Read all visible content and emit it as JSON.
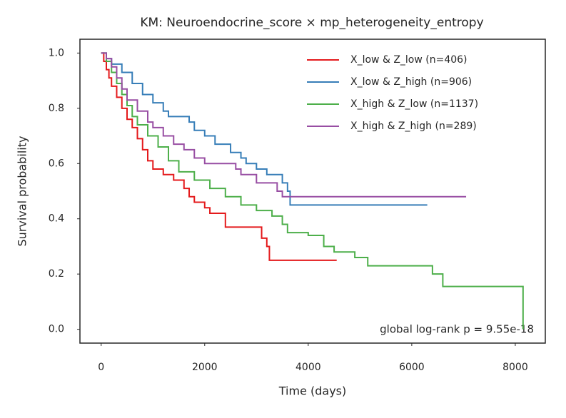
{
  "chart_data": {
    "type": "step",
    "title": "KM: Neuroendocrine_score × mp_heterogeneity_entropy",
    "x_label": "Time (days)",
    "y_label": "Survival probability",
    "annotation": "global log-rank p = 9.55e-18",
    "xlim": [
      -410,
      8580
    ],
    "ylim": [
      -0.05,
      1.05
    ],
    "xticks": [
      0,
      2000,
      4000,
      6000,
      8000
    ],
    "yticks": [
      {
        "value": 0,
        "label": "0.0"
      },
      {
        "value": 0.2,
        "label": "0.2"
      },
      {
        "value": 0.4,
        "label": "0.4"
      },
      {
        "value": 0.6,
        "label": "0.6"
      },
      {
        "value": 0.8,
        "label": "0.8"
      },
      {
        "value": 1,
        "label": "1.0"
      }
    ],
    "legend": "upper right",
    "series": [
      {
        "name": "X_low & Z_low (n=406)",
        "color": "#e41a1c",
        "x": [
          0,
          50,
          100,
          150,
          200,
          300,
          400,
          500,
          600,
          700,
          800,
          900,
          1000,
          1200,
          1400,
          1600,
          1700,
          1800,
          2000,
          2100,
          2400,
          3100,
          3200,
          3250,
          4550
        ],
        "values": [
          1.0,
          0.97,
          0.94,
          0.91,
          0.88,
          0.84,
          0.8,
          0.76,
          0.73,
          0.69,
          0.65,
          0.61,
          0.58,
          0.56,
          0.54,
          0.51,
          0.48,
          0.46,
          0.44,
          0.42,
          0.37,
          0.33,
          0.3,
          0.25,
          0.25
        ]
      },
      {
        "name": "X_low & Z_high (n=906)",
        "color": "#377eb8",
        "x": [
          0,
          100,
          200,
          400,
          600,
          800,
          1000,
          1200,
          1300,
          1700,
          1800,
          2000,
          2200,
          2500,
          2700,
          2800,
          3000,
          3200,
          3500,
          3600,
          3650,
          6300
        ],
        "values": [
          1.0,
          0.98,
          0.96,
          0.93,
          0.89,
          0.85,
          0.82,
          0.79,
          0.77,
          0.75,
          0.72,
          0.7,
          0.67,
          0.64,
          0.62,
          0.6,
          0.58,
          0.56,
          0.53,
          0.5,
          0.45,
          0.45
        ]
      },
      {
        "name": "X_high & Z_low (n=1137)",
        "color": "#4daf4a",
        "x": [
          0,
          100,
          200,
          300,
          400,
          500,
          600,
          700,
          900,
          1100,
          1300,
          1500,
          1800,
          2100,
          2400,
          2700,
          3000,
          3300,
          3500,
          3600,
          4000,
          4300,
          4500,
          4900,
          5150,
          6400,
          6600,
          8150
        ],
        "values": [
          1.0,
          0.97,
          0.93,
          0.89,
          0.85,
          0.81,
          0.77,
          0.74,
          0.7,
          0.66,
          0.61,
          0.57,
          0.54,
          0.51,
          0.48,
          0.45,
          0.43,
          0.41,
          0.38,
          0.35,
          0.34,
          0.3,
          0.28,
          0.26,
          0.23,
          0.2,
          0.155,
          0.0
        ]
      },
      {
        "name": "X_high & Z_high (n=289)",
        "color": "#984ea3",
        "x": [
          0,
          100,
          200,
          300,
          400,
          500,
          700,
          900,
          1000,
          1200,
          1400,
          1600,
          1800,
          2000,
          2600,
          2700,
          3000,
          3400,
          3500,
          7050
        ],
        "values": [
          1.0,
          0.98,
          0.95,
          0.91,
          0.87,
          0.83,
          0.79,
          0.75,
          0.73,
          0.7,
          0.67,
          0.65,
          0.62,
          0.6,
          0.58,
          0.56,
          0.53,
          0.5,
          0.48,
          0.48
        ]
      }
    ]
  }
}
